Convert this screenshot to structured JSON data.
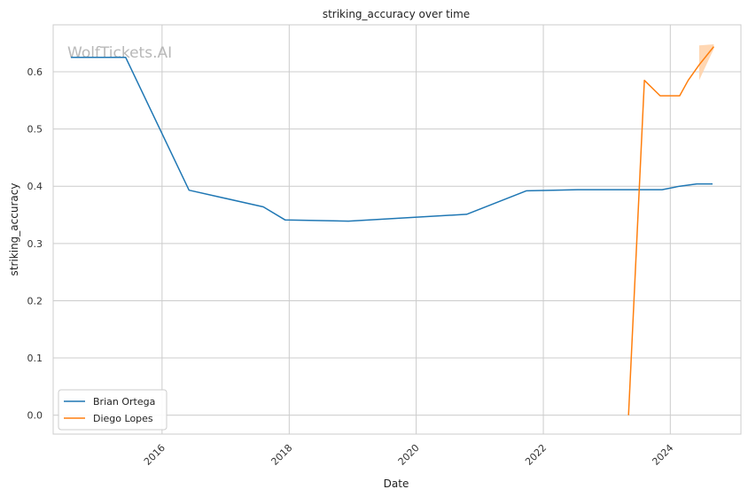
{
  "watermark": "WolfTickets.AI",
  "chart_data": {
    "type": "line",
    "title": "striking_accuracy over time",
    "xlabel": "Date",
    "ylabel": "striking_accuracy",
    "x_ticks": [
      "2016-01-01",
      "2018-01-01",
      "2020-01-01",
      "2022-01-01",
      "2024-01-01"
    ],
    "x_tick_labels": [
      "2016",
      "2018",
      "2020",
      "2022",
      "2024"
    ],
    "y_ticks": [
      0.0,
      0.1,
      0.2,
      0.3,
      0.4,
      0.5,
      0.6
    ],
    "y_tick_labels": [
      "0.0",
      "0.1",
      "0.2",
      "0.3",
      "0.4",
      "0.5",
      "0.6"
    ],
    "xlim": [
      "2014-04-15",
      "2025-02-10"
    ],
    "ylim": [
      -0.033,
      0.682
    ],
    "grid": true,
    "legend_position": "lower-left",
    "series": [
      {
        "name": "Brian Ortega",
        "color": "#1f77b4",
        "points": [
          [
            "2014-07-26",
            0.625
          ],
          [
            "2015-06-06",
            0.625
          ],
          [
            "2016-06-04",
            0.393
          ],
          [
            "2017-08-05",
            0.364
          ],
          [
            "2017-12-09",
            0.341
          ],
          [
            "2018-12-08",
            0.339
          ],
          [
            "2020-10-17",
            0.351
          ],
          [
            "2021-09-25",
            0.392
          ],
          [
            "2022-07-16",
            0.394
          ],
          [
            "2023-11-15",
            0.394
          ],
          [
            "2024-02-24",
            0.4
          ],
          [
            "2024-06-01",
            0.404
          ],
          [
            "2024-08-31",
            0.404
          ]
        ]
      },
      {
        "name": "Diego Lopes",
        "color": "#ff7f0e",
        "band_color": "#ffd0a6",
        "points": [
          [
            "2023-05-06",
            0.0
          ],
          [
            "2023-08-05",
            0.585
          ],
          [
            "2023-11-04",
            0.558
          ],
          [
            "2024-02-24",
            0.558
          ],
          [
            "2024-04-13",
            0.585
          ],
          [
            "2024-06-15",
            0.612
          ],
          [
            "2024-09-07",
            0.644
          ]
        ],
        "band": [
          [
            "2024-06-15",
            0.585,
            0.646
          ],
          [
            "2024-09-07",
            0.64,
            0.648
          ]
        ]
      }
    ]
  }
}
